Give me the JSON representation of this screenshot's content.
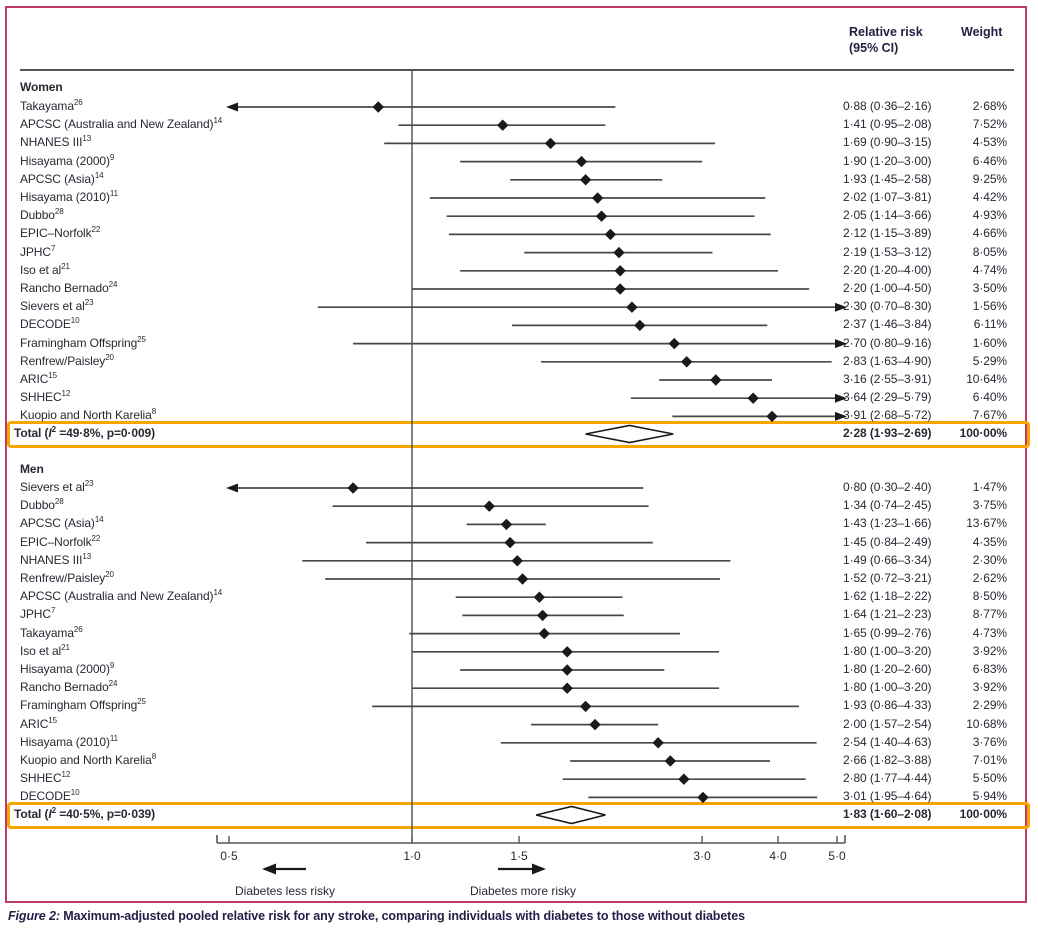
{
  "header": {
    "rr_line1": "Relative risk",
    "rr_line2": "(95% CI)",
    "weight": "Weight"
  },
  "axis": {
    "left_label": "Diabetes less risky",
    "right_label": "Diabetes more risky"
  },
  "caption": {
    "prefix": "Figure 2:",
    "text": " Maximum-adjusted pooled relative risk for any stroke, comparing individuals with diabetes to those without diabetes"
  },
  "colors": {
    "frame": "#bc3a68",
    "highlight": "#f8a500",
    "marker": "#1a1a1a",
    "line": "#47474f",
    "axis": "#55555a"
  },
  "chart_data": {
    "type": "forest",
    "x_axis": {
      "scale": "log",
      "ticks": [
        0.5,
        1.0,
        1.5,
        3.0,
        4.0,
        5.0
      ],
      "tick_labels": [
        "0·5",
        "1·0",
        "1·5",
        "3·0",
        "4·0",
        "5·0"
      ],
      "reference_value": 1.0,
      "clip_min": 0.5,
      "clip_max": 5.0
    },
    "groups": [
      {
        "name": "Women",
        "studies": [
          {
            "label": "Takayama",
            "ref": "26",
            "est": 0.88,
            "lo": 0.36,
            "hi": 2.16,
            "rr_text": "0·88 (0·36–2·16)",
            "weight": "2·68%"
          },
          {
            "label": "APCSC (Australia and New Zealand)",
            "ref": "14",
            "est": 1.41,
            "lo": 0.95,
            "hi": 2.08,
            "rr_text": "1·41 (0·95–2·08)",
            "weight": "7·52%"
          },
          {
            "label": "NHANES III",
            "ref": "13",
            "est": 1.69,
            "lo": 0.9,
            "hi": 3.15,
            "rr_text": "1·69 (0·90–3·15)",
            "weight": "4·53%"
          },
          {
            "label": "Hisayama (2000)",
            "ref": "9",
            "est": 1.9,
            "lo": 1.2,
            "hi": 3.0,
            "rr_text": "1·90 (1·20–3·00)",
            "weight": "6·46%"
          },
          {
            "label": "APCSC (Asia)",
            "ref": "14",
            "est": 1.93,
            "lo": 1.45,
            "hi": 2.58,
            "rr_text": "1·93 (1·45–2·58)",
            "weight": "9·25%"
          },
          {
            "label": "Hisayama (2010)",
            "ref": "11",
            "est": 2.02,
            "lo": 1.07,
            "hi": 3.81,
            "rr_text": "2·02 (1·07–3·81)",
            "weight": "4·42%"
          },
          {
            "label": "Dubbo",
            "ref": "28",
            "est": 2.05,
            "lo": 1.14,
            "hi": 3.66,
            "rr_text": "2·05 (1·14–3·66)",
            "weight": "4·93%"
          },
          {
            "label": "EPIC–Norfolk",
            "ref": "22",
            "est": 2.12,
            "lo": 1.15,
            "hi": 3.89,
            "rr_text": "2·12 (1·15–3·89)",
            "weight": "4·66%"
          },
          {
            "label": "JPHC",
            "ref": "7",
            "est": 2.19,
            "lo": 1.53,
            "hi": 3.12,
            "rr_text": "2·19 (1·53–3·12)",
            "weight": "8·05%"
          },
          {
            "label": "Iso et al",
            "ref": "21",
            "est": 2.2,
            "lo": 1.2,
            "hi": 4.0,
            "rr_text": "2·20 (1·20–4·00)",
            "weight": "4·74%"
          },
          {
            "label": "Rancho Bernado",
            "ref": "24",
            "est": 2.2,
            "lo": 1.0,
            "hi": 4.5,
            "rr_text": "2·20 (1·00–4·50)",
            "weight": "3·50%"
          },
          {
            "label": "Sievers et al",
            "ref": "23",
            "est": 2.3,
            "lo": 0.7,
            "hi": 8.3,
            "rr_text": "2·30 (0·70–8·30)",
            "weight": "1·56%"
          },
          {
            "label": "DECODE",
            "ref": "10",
            "est": 2.37,
            "lo": 1.46,
            "hi": 3.84,
            "rr_text": "2·37 (1·46–3·84)",
            "weight": "6·11%"
          },
          {
            "label": "Framingham Offspring",
            "ref": "25",
            "est": 2.7,
            "lo": 0.8,
            "hi": 9.16,
            "rr_text": "2·70 (0·80–9·16)",
            "weight": "1·60%"
          },
          {
            "label": "Renfrew/Paisley",
            "ref": "20",
            "est": 2.83,
            "lo": 1.63,
            "hi": 4.9,
            "rr_text": "2·83 (1·63–4·90)",
            "weight": "5·29%"
          },
          {
            "label": "ARIC",
            "ref": "15",
            "est": 3.16,
            "lo": 2.55,
            "hi": 3.91,
            "rr_text": "3·16 (2·55–3·91)",
            "weight": "10·64%"
          },
          {
            "label": "SHHEC",
            "ref": "12",
            "est": 3.64,
            "lo": 2.29,
            "hi": 5.79,
            "rr_text": "3·64 (2·29–5·79)",
            "weight": "6·40%"
          },
          {
            "label": "Kuopio and North Karelia",
            "ref": "8",
            "est": 3.91,
            "lo": 2.68,
            "hi": 5.72,
            "rr_text": "3·91 (2·68–5·72)",
            "weight": "7·67%"
          }
        ],
        "total": {
          "label_pre": "Total (",
          "i_sym": "I",
          "i_sup": "2",
          "label_mid": " =49·8%, p=0·009)",
          "est": 2.28,
          "lo": 1.93,
          "hi": 2.69,
          "rr_text": "2·28 (1·93–2·69)",
          "weight": "100·00%"
        }
      },
      {
        "name": "Men",
        "studies": [
          {
            "label": "Sievers et al",
            "ref": "23",
            "est": 0.8,
            "lo": 0.3,
            "hi": 2.4,
            "rr_text": "0·80 (0·30–2·40)",
            "weight": "1·47%"
          },
          {
            "label": "Dubbo",
            "ref": "28",
            "est": 1.34,
            "lo": 0.74,
            "hi": 2.45,
            "rr_text": "1·34 (0·74–2·45)",
            "weight": "3·75%"
          },
          {
            "label": "APCSC (Asia)",
            "ref": "14",
            "est": 1.43,
            "lo": 1.23,
            "hi": 1.66,
            "rr_text": "1·43 (1·23–1·66)",
            "weight": "13·67%"
          },
          {
            "label": "EPIC–Norfolk",
            "ref": "22",
            "est": 1.45,
            "lo": 0.84,
            "hi": 2.49,
            "rr_text": "1·45 (0·84–2·49)",
            "weight": "4·35%"
          },
          {
            "label": "NHANES III",
            "ref": "13",
            "est": 1.49,
            "lo": 0.66,
            "hi": 3.34,
            "rr_text": "1·49 (0·66–3·34)",
            "weight": "2·30%"
          },
          {
            "label": "Renfrew/Paisley",
            "ref": "20",
            "est": 1.52,
            "lo": 0.72,
            "hi": 3.21,
            "rr_text": "1·52 (0·72–3·21)",
            "weight": "2·62%"
          },
          {
            "label": "APCSC (Australia and New Zealand)",
            "ref": "14",
            "est": 1.62,
            "lo": 1.18,
            "hi": 2.22,
            "rr_text": "1·62 (1·18–2·22)",
            "weight": "8·50%"
          },
          {
            "label": "JPHC",
            "ref": "7",
            "est": 1.64,
            "lo": 1.21,
            "hi": 2.23,
            "rr_text": "1·64 (1·21–2·23)",
            "weight": "8·77%"
          },
          {
            "label": "Takayama",
            "ref": "26",
            "est": 1.65,
            "lo": 0.99,
            "hi": 2.76,
            "rr_text": "1·65 (0·99–2·76)",
            "weight": "4·73%"
          },
          {
            "label": "Iso et al",
            "ref": "21",
            "est": 1.8,
            "lo": 1.0,
            "hi": 3.2,
            "rr_text": "1·80 (1·00–3·20)",
            "weight": "3·92%"
          },
          {
            "label": "Hisayama (2000)",
            "ref": "9",
            "est": 1.8,
            "lo": 1.2,
            "hi": 2.6,
            "rr_text": "1·80 (1·20–2·60)",
            "weight": "6·83%"
          },
          {
            "label": "Rancho Bernado",
            "ref": "24",
            "est": 1.8,
            "lo": 1.0,
            "hi": 3.2,
            "rr_text": "1·80 (1·00–3·20)",
            "weight": "3·92%"
          },
          {
            "label": "Framingham Offspring",
            "ref": "25",
            "est": 1.93,
            "lo": 0.86,
            "hi": 4.33,
            "rr_text": "1·93 (0·86–4·33)",
            "weight": "2·29%"
          },
          {
            "label": "ARIC",
            "ref": "15",
            "est": 2.0,
            "lo": 1.57,
            "hi": 2.54,
            "rr_text": "2·00 (1·57–2·54)",
            "weight": "10·68%"
          },
          {
            "label": "Hisayama (2010)",
            "ref": "11",
            "est": 2.54,
            "lo": 1.4,
            "hi": 4.63,
            "rr_text": "2·54 (1·40–4·63)",
            "weight": "3·76%"
          },
          {
            "label": "Kuopio and North Karelia",
            "ref": "8",
            "est": 2.66,
            "lo": 1.82,
            "hi": 3.88,
            "rr_text": "2·66 (1·82–3·88)",
            "weight": "7·01%"
          },
          {
            "label": "SHHEC",
            "ref": "12",
            "est": 2.8,
            "lo": 1.77,
            "hi": 4.44,
            "rr_text": "2·80 (1·77–4·44)",
            "weight": "5·50%"
          },
          {
            "label": "DECODE",
            "ref": "10",
            "est": 3.01,
            "lo": 1.95,
            "hi": 4.64,
            "rr_text": "3·01 (1·95–4·64)",
            "weight": "5·94%"
          }
        ],
        "total": {
          "label_pre": "Total (",
          "i_sym": "I",
          "i_sup": "2",
          "label_mid": " =40·5%, p=0·039)",
          "est": 1.83,
          "lo": 1.6,
          "hi": 2.08,
          "rr_text": "1·83 (1·60–2·08)",
          "weight": "100·00%"
        }
      }
    ]
  }
}
